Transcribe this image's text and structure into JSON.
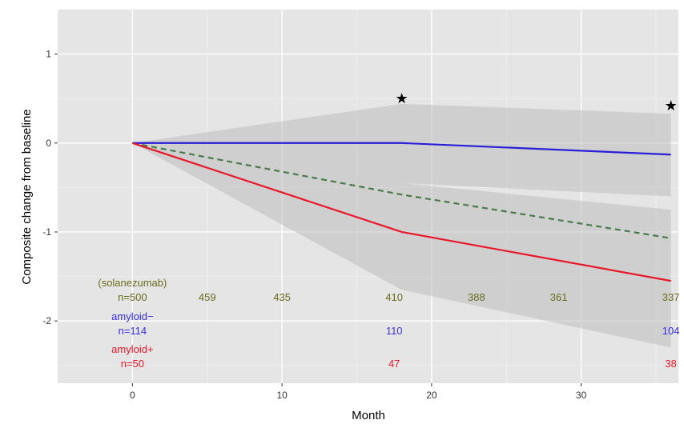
{
  "chart_data": {
    "type": "line",
    "xlabel": "Month",
    "ylabel": "Composite change from baseline",
    "xlim": [
      -5,
      36.5
    ],
    "ylim": [
      -2.7,
      1.5
    ],
    "x_ticks": [
      "0",
      "10",
      "20",
      "30"
    ],
    "x_tick_values": [
      0,
      10,
      20,
      30
    ],
    "y_ticks": [
      "1",
      "0",
      "-1",
      "-2"
    ],
    "y_tick_values": [
      1,
      0,
      -1,
      -2
    ],
    "grid": true,
    "series": [
      {
        "key": "solanezumab",
        "color": "#4a7a4a",
        "dash": true,
        "x": [
          0,
          18,
          36
        ],
        "y": [
          0,
          -0.58,
          -1.07
        ]
      },
      {
        "key": "amyloid_neg",
        "color": "#2a1fd6",
        "dash": false,
        "x": [
          0,
          18,
          36
        ],
        "y": [
          0,
          0.0,
          -0.13
        ],
        "band_upper": [
          0,
          0.44,
          0.33
        ],
        "band_lower": [
          0,
          -0.45,
          -0.6
        ]
      },
      {
        "key": "amyloid_pos",
        "color": "#e8182a",
        "dash": false,
        "x": [
          0,
          18,
          36
        ],
        "y": [
          0,
          -1.0,
          -1.55
        ],
        "band_upper": [
          0,
          -0.45,
          -0.75
        ],
        "band_lower": [
          0,
          -1.65,
          -2.3
        ]
      }
    ],
    "significance_markers": [
      {
        "x": 18,
        "y": 0.5,
        "symbol": "★"
      },
      {
        "x": 36,
        "y": 0.42,
        "symbol": "★"
      }
    ],
    "risk_table": {
      "x_positions": [
        0,
        5,
        10,
        17.5,
        23,
        28.5,
        36
      ],
      "rows": [
        {
          "color": "#6b6b1f",
          "label_lines": [
            "(solanezumab)",
            "n=500"
          ],
          "counts": [
            "459",
            "435",
            "410",
            "388",
            "361",
            "337"
          ]
        },
        {
          "color": "#3a2fe0",
          "label_lines": [
            "amyloid−",
            "n=114"
          ],
          "counts": [
            "110",
            "104"
          ]
        },
        {
          "color": "#e8182a",
          "label_lines": [
            "amyloid+",
            "n=50"
          ],
          "counts": [
            "47",
            "38"
          ]
        }
      ]
    }
  }
}
